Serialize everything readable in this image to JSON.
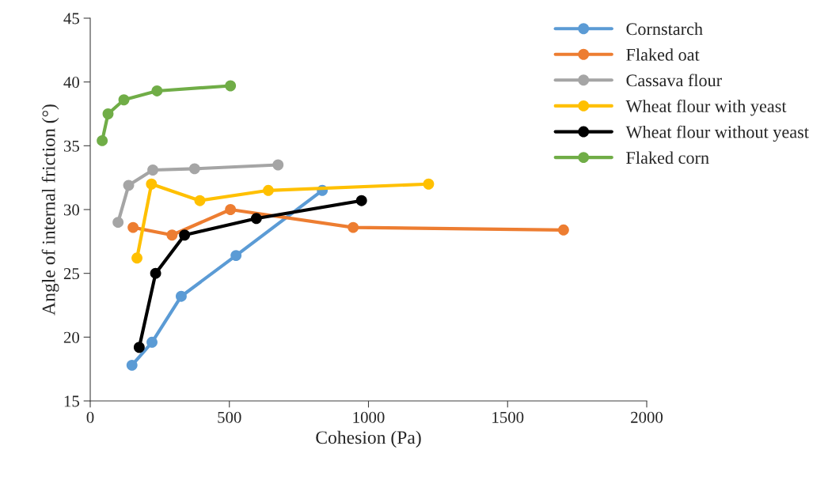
{
  "chart_data": {
    "type": "line",
    "xlabel": "Cohesion (Pa)",
    "ylabel": "Angle of internal friction (°)",
    "xlim": [
      0,
      2000
    ],
    "xticks": [
      0,
      500,
      1000,
      1500,
      2000
    ],
    "ylim": [
      15,
      45
    ],
    "yticks": [
      15,
      20,
      25,
      30,
      35,
      40,
      45
    ],
    "grid": false,
    "legend": "top right",
    "marker": "circle",
    "line_style": "solid",
    "series": [
      {
        "name": "Cornstarch",
        "color": "#5b9bd5",
        "x": [
          150,
          222,
          327,
          524,
          834
        ],
        "values": [
          17.8,
          19.6,
          23.2,
          26.4,
          31.5
        ]
      },
      {
        "name": "Flaked oat",
        "color": "#ed7d31",
        "x": [
          154,
          294,
          504,
          945,
          1701
        ],
        "values": [
          28.6,
          28.0,
          30.0,
          28.6,
          28.4
        ]
      },
      {
        "name": "Cassava flour",
        "color": "#a5a5a5",
        "x": [
          100,
          138,
          225,
          375,
          675
        ],
        "values": [
          29.0,
          31.9,
          33.1,
          33.2,
          33.5
        ]
      },
      {
        "name": "Wheat flour with yeast",
        "color": "#ffc000",
        "x": [
          168,
          220,
          394,
          640,
          1216
        ],
        "values": [
          26.2,
          32.0,
          30.7,
          31.5,
          32.0
        ]
      },
      {
        "name": "Wheat flour without yeast",
        "color": "#000000",
        "x": [
          176,
          235,
          339,
          597,
          975
        ],
        "values": [
          19.2,
          25.0,
          28.0,
          29.3,
          30.7
        ]
      },
      {
        "name": "Flaked corn",
        "color": "#70ad47",
        "x": [
          43,
          64,
          121,
          240,
          504
        ],
        "values": [
          35.4,
          37.5,
          38.6,
          39.3,
          39.7
        ]
      }
    ]
  }
}
